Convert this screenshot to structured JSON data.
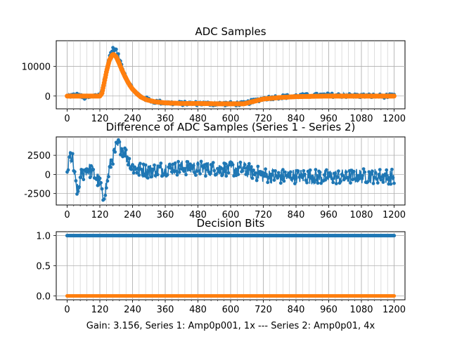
{
  "figure": {
    "caption": "Gain: 3.156, Series 1: Amp0p001, 1x --- Series 2: Amp0p01, 4x"
  },
  "colors": {
    "series1": "#1f77b4",
    "series2": "#ff7f0e",
    "grid": "#b0b0b0"
  },
  "chart_data": [
    {
      "type": "scatter",
      "title": "ADC Samples",
      "xlabel": "",
      "ylabel": "",
      "xlim": [
        -40,
        1240
      ],
      "ylim": [
        -4300,
        18600
      ],
      "xticks": [
        0,
        120,
        240,
        360,
        480,
        600,
        720,
        840,
        960,
        1080,
        1200
      ],
      "yticks": [
        0,
        10000
      ],
      "grid": true,
      "series": [
        {
          "name": "Series 1",
          "color": "#1f77b4",
          "points": [
            [
              0,
              0
            ],
            [
              40,
              400
            ],
            [
              60,
              -600
            ],
            [
              90,
              -200
            ],
            [
              110,
              300
            ],
            [
              125,
              1000
            ],
            [
              130,
              2500
            ],
            [
              140,
              7000
            ],
            [
              150,
              11500
            ],
            [
              160,
              14600
            ],
            [
              170,
              16000
            ],
            [
              180,
              15300
            ],
            [
              190,
              13000
            ],
            [
              200,
              10500
            ],
            [
              210,
              8000
            ],
            [
              220,
              5800
            ],
            [
              230,
              4000
            ],
            [
              240,
              2500
            ],
            [
              255,
              1000
            ],
            [
              270,
              -200
            ],
            [
              290,
              -1000
            ],
            [
              320,
              -1800
            ],
            [
              360,
              -2300
            ],
            [
              420,
              -2500
            ],
            [
              480,
              -2500
            ],
            [
              540,
              -2600
            ],
            [
              600,
              -2600
            ],
            [
              650,
              -2600
            ],
            [
              680,
              -1800
            ],
            [
              720,
              -800
            ],
            [
              780,
              -300
            ],
            [
              840,
              0
            ],
            [
              900,
              200
            ],
            [
              960,
              300
            ],
            [
              1020,
              200
            ],
            [
              1080,
              100
            ],
            [
              1140,
              0
            ],
            [
              1200,
              0
            ]
          ]
        },
        {
          "name": "Series 2",
          "color": "#ff7f0e",
          "points": [
            [
              0,
              0
            ],
            [
              120,
              0
            ],
            [
              128,
              1000
            ],
            [
              135,
              4000
            ],
            [
              145,
              8500
            ],
            [
              155,
              12000
            ],
            [
              165,
              13800
            ],
            [
              170,
              14000
            ],
            [
              180,
              13200
            ],
            [
              190,
              11200
            ],
            [
              200,
              9000
            ],
            [
              210,
              7000
            ],
            [
              220,
              5200
            ],
            [
              230,
              3600
            ],
            [
              240,
              2300
            ],
            [
              255,
              900
            ],
            [
              270,
              -300
            ],
            [
              290,
              -1200
            ],
            [
              320,
              -1900
            ],
            [
              360,
              -2300
            ],
            [
              420,
              -2500
            ],
            [
              480,
              -2500
            ],
            [
              540,
              -2600
            ],
            [
              600,
              -2600
            ],
            [
              650,
              -2600
            ],
            [
              680,
              -1900
            ],
            [
              720,
              -1000
            ],
            [
              780,
              -500
            ],
            [
              840,
              -200
            ],
            [
              900,
              -100
            ],
            [
              960,
              0
            ],
            [
              1020,
              0
            ],
            [
              1080,
              0
            ],
            [
              1140,
              0
            ],
            [
              1200,
              0
            ]
          ]
        }
      ]
    },
    {
      "type": "scatter",
      "title": "Difference of ADC Samples (Series 1 - Series 2)",
      "xlabel": "",
      "ylabel": "",
      "xlim": [
        -40,
        1240
      ],
      "ylim": [
        -4000,
        4900
      ],
      "xticks": [
        0,
        120,
        240,
        360,
        480,
        600,
        720,
        840,
        960,
        1080,
        1200
      ],
      "yticks": [
        -2500,
        0,
        2500
      ],
      "grid": true,
      "series": [
        {
          "name": "Difference",
          "color": "#1f77b4",
          "points": [
            [
              0,
              0
            ],
            [
              10,
              2500
            ],
            [
              20,
              1800
            ],
            [
              30,
              -1000
            ],
            [
              40,
              -2500
            ],
            [
              50,
              -300
            ],
            [
              70,
              700
            ],
            [
              90,
              400
            ],
            [
              110,
              -600
            ],
            [
              120,
              -1000
            ],
            [
              125,
              -1800
            ],
            [
              130,
              -3500
            ],
            [
              135,
              -2500
            ],
            [
              140,
              -2000
            ],
            [
              145,
              -1200
            ],
            [
              150,
              -200
            ],
            [
              160,
              1500
            ],
            [
              170,
              2500
            ],
            [
              180,
              3500
            ],
            [
              190,
              3800
            ],
            [
              200,
              3400
            ],
            [
              210,
              3000
            ],
            [
              220,
              2200
            ],
            [
              230,
              1500
            ],
            [
              240,
              900
            ],
            [
              260,
              600
            ],
            [
              300,
              400
            ],
            [
              360,
              800
            ],
            [
              420,
              900
            ],
            [
              480,
              800
            ],
            [
              540,
              700
            ],
            [
              600,
              700
            ],
            [
              650,
              700
            ],
            [
              680,
              300
            ],
            [
              720,
              -100
            ],
            [
              780,
              -300
            ],
            [
              840,
              -200
            ],
            [
              900,
              -300
            ],
            [
              960,
              -300
            ],
            [
              1020,
              -300
            ],
            [
              1080,
              -200
            ],
            [
              1140,
              -200
            ],
            [
              1200,
              -300
            ]
          ]
        }
      ]
    },
    {
      "type": "scatter",
      "title": "Decision Bits",
      "xlabel": "Gain: 3.156, Series 1: Amp0p001, 1x --- Series 2: Amp0p01, 4x",
      "ylabel": "",
      "xlim": [
        -40,
        1240
      ],
      "ylim": [
        -0.065,
        1.065
      ],
      "xticks": [
        0,
        120,
        240,
        360,
        480,
        600,
        720,
        840,
        960,
        1080,
        1200
      ],
      "yticks": [
        0.0,
        0.5,
        1.0
      ],
      "ytick_labels": [
        "0.0",
        "0.5",
        "1.0"
      ],
      "grid": true,
      "series": [
        {
          "name": "Series 1",
          "color": "#1f77b4",
          "constant": 1.0,
          "x_range": [
            0,
            1200
          ]
        },
        {
          "name": "Series 2",
          "color": "#ff7f0e",
          "constant": 0.0,
          "x_range": [
            0,
            1200
          ]
        }
      ]
    }
  ]
}
